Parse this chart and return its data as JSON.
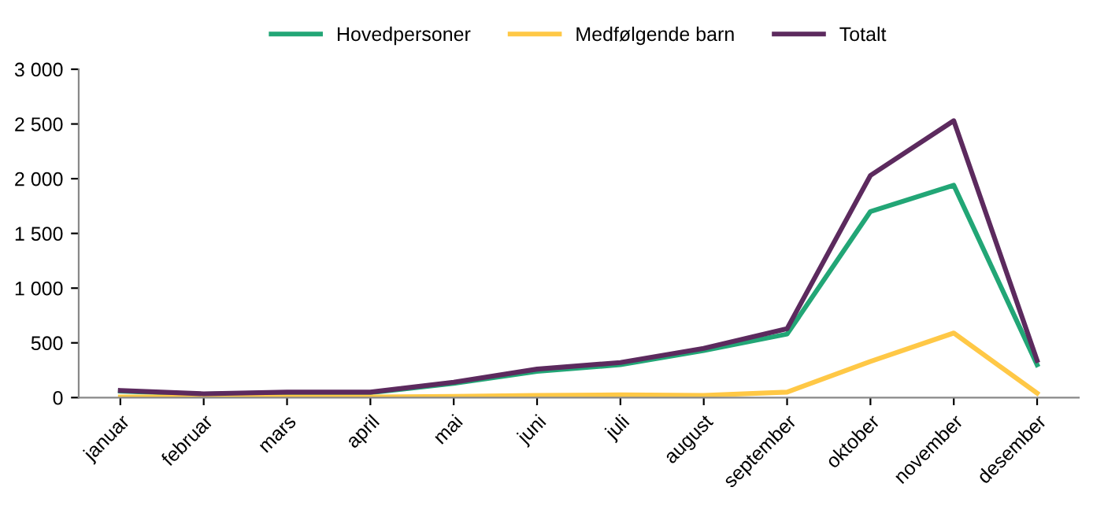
{
  "chart_data": {
    "type": "line",
    "categories": [
      "januar",
      "februar",
      "mars",
      "april",
      "mai",
      "juni",
      "juli",
      "august",
      "september",
      "oktober",
      "november",
      "desember"
    ],
    "series": [
      {
        "name": "Hovedpersoner",
        "color": "#22a676",
        "values": [
          60,
          30,
          45,
          45,
          130,
          240,
          300,
          430,
          580,
          1700,
          1940,
          300
        ]
      },
      {
        "name": "Medfølgende barn",
        "color": "#ffc846",
        "values": [
          5,
          5,
          5,
          5,
          10,
          20,
          25,
          20,
          50,
          330,
          590,
          40
        ]
      },
      {
        "name": "Totalt",
        "color": "#5c2a5e",
        "values": [
          65,
          35,
          50,
          50,
          140,
          260,
          320,
          450,
          630,
          2030,
          2530,
          340
        ]
      }
    ],
    "ylim": [
      0,
      3000
    ],
    "yticks": [
      {
        "value": 0,
        "label": "0"
      },
      {
        "value": 500,
        "label": "500"
      },
      {
        "value": 1000,
        "label": "1 000"
      },
      {
        "value": 1500,
        "label": "1 500"
      },
      {
        "value": 2000,
        "label": "2 000"
      },
      {
        "value": 2500,
        "label": "2 500"
      },
      {
        "value": 3000,
        "label": "3 000"
      }
    ],
    "grid": false,
    "legend": "top",
    "marker": "none",
    "line_style": "solid"
  }
}
